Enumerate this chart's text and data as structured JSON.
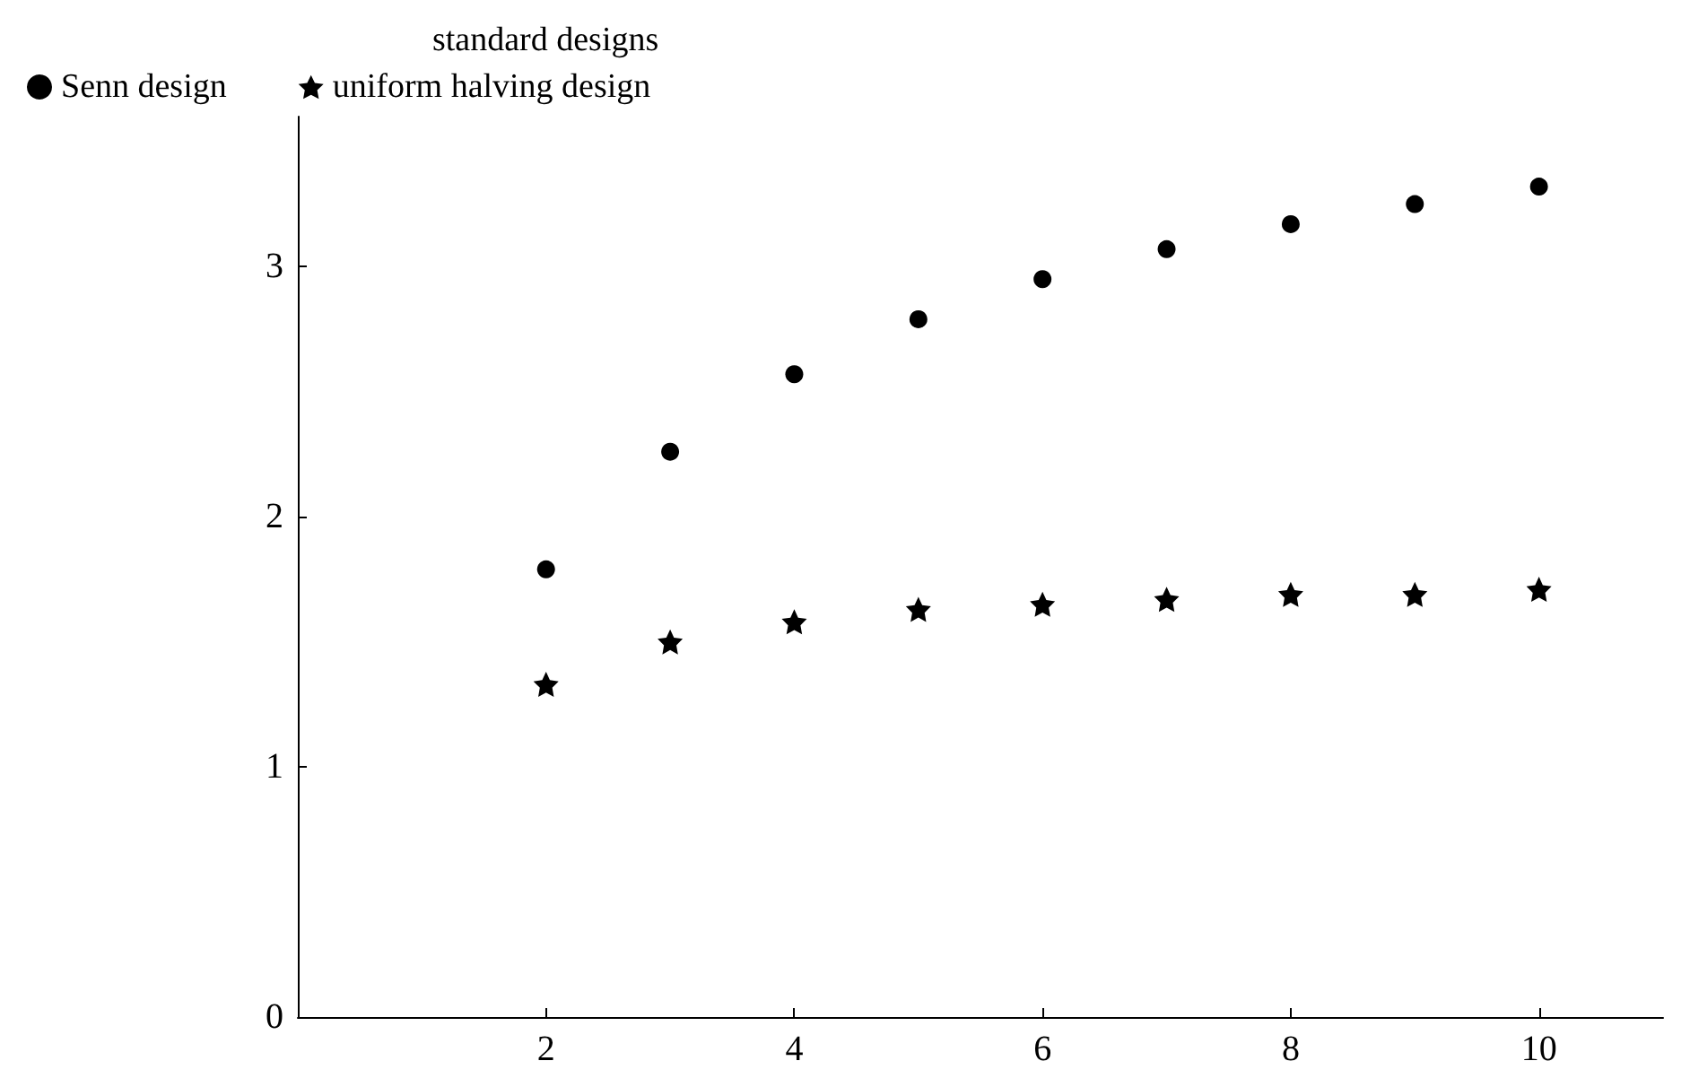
{
  "chart_data": {
    "type": "scatter",
    "legend_title": "standard designs",
    "legend": "top left",
    "grid": false,
    "x": [
      2,
      3,
      4,
      5,
      6,
      7,
      8,
      9,
      10
    ],
    "series": [
      {
        "name": "Senn design",
        "color": "#000000",
        "marker": "circle",
        "values": [
          1.79,
          2.26,
          2.57,
          2.79,
          2.95,
          3.07,
          3.17,
          3.25,
          3.32
        ]
      },
      {
        "name": "uniform halving design",
        "color": "#000000",
        "marker": "star",
        "values": [
          1.33,
          1.5,
          1.58,
          1.63,
          1.65,
          1.67,
          1.69,
          1.69,
          1.71
        ]
      }
    ],
    "xlim": [
      0,
      11
    ],
    "xticks": [
      2,
      4,
      6,
      8,
      10
    ],
    "ylim": [
      0,
      3.6
    ],
    "yticks": [
      0,
      1,
      2,
      3
    ]
  }
}
